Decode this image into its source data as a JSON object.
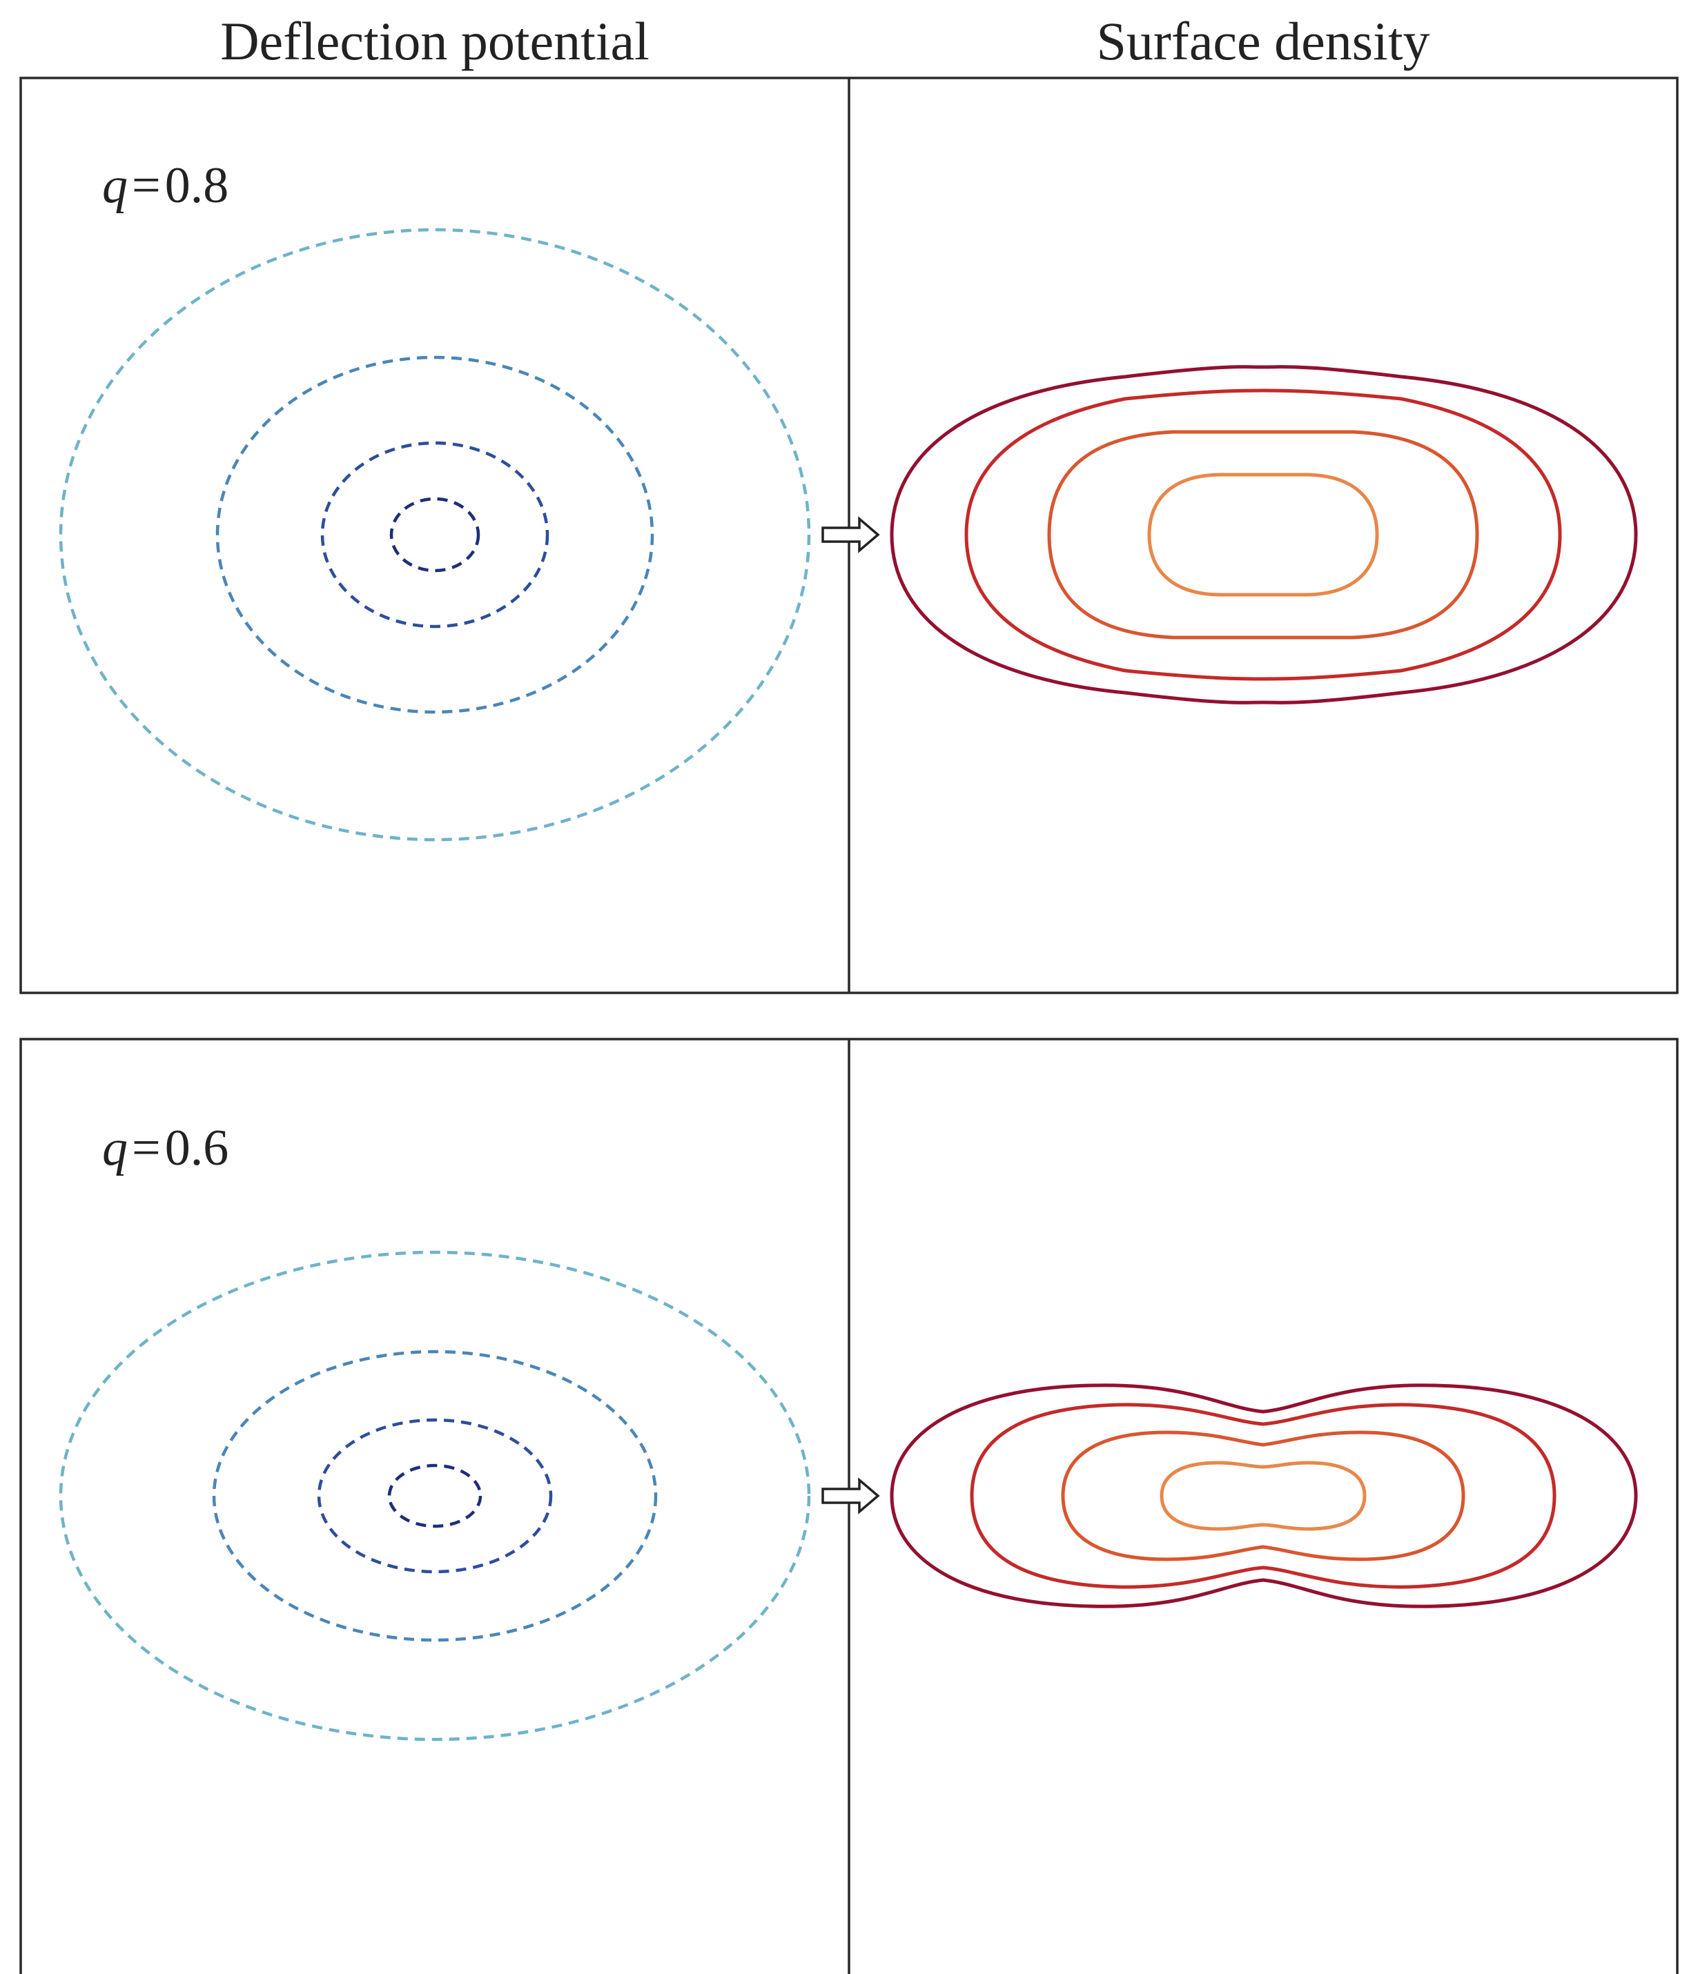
{
  "titles": {
    "left": "Deflection potential",
    "right": "Surface density"
  },
  "panels": [
    {
      "q_var": "q",
      "q_eq": "=",
      "q_value": "0.8",
      "q": 0.8
    },
    {
      "q_var": "q",
      "q_eq": "=",
      "q_value": "0.6",
      "q": 0.6
    }
  ],
  "colors": {
    "potential": [
      "#1f2d7a",
      "#2c4e9c",
      "#4a86b8",
      "#6eb3c8"
    ],
    "density": [
      "#e8874a",
      "#d9562f",
      "#c42a29",
      "#94102f"
    ]
  },
  "icons": {
    "arrow": "hollow-right-arrow-icon"
  }
}
